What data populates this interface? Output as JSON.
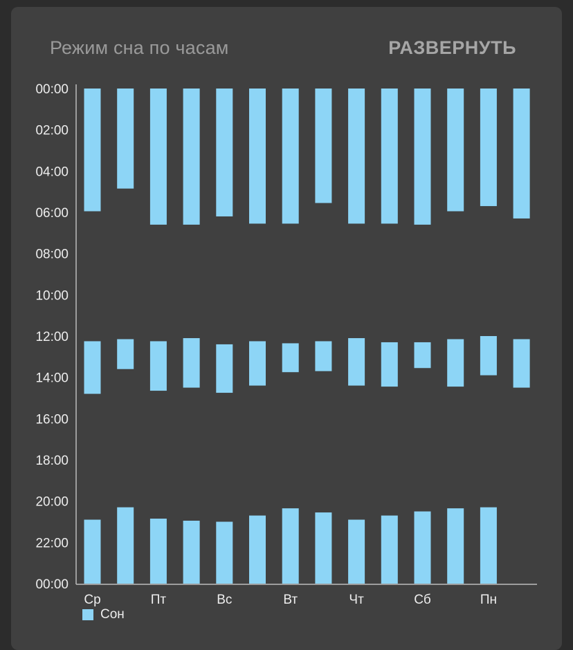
{
  "header": {
    "title": "Режим сна по часам",
    "expand_label": "РАЗВЕРНУТЬ"
  },
  "colors": {
    "background": "#2c2c2c",
    "card": "#404040",
    "bar": "#8dd5f6",
    "axis": "#bdbdbd",
    "text": "#ededed"
  },
  "chart_data": {
    "type": "bar",
    "orientation": "vertical-floating",
    "title": "Режим сна по часам",
    "y_tick_labels": [
      "00:00",
      "02:00",
      "04:00",
      "06:00",
      "08:00",
      "10:00",
      "12:00",
      "14:00",
      "16:00",
      "18:00",
      "20:00",
      "22:00",
      "00:00"
    ],
    "ylim": [
      0,
      24
    ],
    "y_inverted": true,
    "x_tick_labels": [
      "Ср",
      "Пт",
      "Вс",
      "Вт",
      "Чт",
      "Сб",
      "Пн"
    ],
    "x_tick_every": 2,
    "grid": false,
    "legend_position": "bottom-left",
    "series": [
      {
        "name": "Сон",
        "color": "#8dd5f6",
        "days": [
          {
            "segments": [
              [
                0,
                5.95
              ],
              [
                12.25,
                14.8
              ],
              [
                20.9,
                24
              ]
            ]
          },
          {
            "segments": [
              [
                0,
                4.85
              ],
              [
                12.15,
                13.6
              ],
              [
                20.3,
                24
              ]
            ]
          },
          {
            "segments": [
              [
                0,
                6.6
              ],
              [
                12.25,
                14.65
              ],
              [
                20.85,
                24
              ]
            ]
          },
          {
            "segments": [
              [
                0,
                6.6
              ],
              [
                12.1,
                14.5
              ],
              [
                20.95,
                24
              ]
            ]
          },
          {
            "segments": [
              [
                0,
                6.2
              ],
              [
                12.4,
                14.75
              ],
              [
                21.0,
                24
              ]
            ]
          },
          {
            "segments": [
              [
                0,
                6.55
              ],
              [
                12.25,
                14.4
              ],
              [
                20.7,
                24
              ]
            ]
          },
          {
            "segments": [
              [
                0,
                6.55
              ],
              [
                12.35,
                13.75
              ],
              [
                20.35,
                24
              ]
            ]
          },
          {
            "segments": [
              [
                0,
                5.55
              ],
              [
                12.25,
                13.7
              ],
              [
                20.55,
                24
              ]
            ]
          },
          {
            "segments": [
              [
                0,
                6.55
              ],
              [
                12.1,
                14.4
              ],
              [
                20.9,
                24
              ]
            ]
          },
          {
            "segments": [
              [
                0,
                6.55
              ],
              [
                12.3,
                14.45
              ],
              [
                20.7,
                24
              ]
            ]
          },
          {
            "segments": [
              [
                0,
                6.6
              ],
              [
                12.3,
                13.55
              ],
              [
                20.5,
                24
              ]
            ]
          },
          {
            "segments": [
              [
                0,
                5.95
              ],
              [
                12.15,
                14.45
              ],
              [
                20.35,
                24
              ]
            ]
          },
          {
            "segments": [
              [
                0,
                5.7
              ],
              [
                12.0,
                13.9
              ],
              [
                20.3,
                24
              ]
            ]
          },
          {
            "segments": [
              [
                0,
                6.3
              ],
              [
                12.15,
                14.5
              ]
            ]
          }
        ]
      }
    ]
  },
  "legend": {
    "items": [
      {
        "label": "Сон",
        "color": "#8dd5f6"
      }
    ]
  }
}
